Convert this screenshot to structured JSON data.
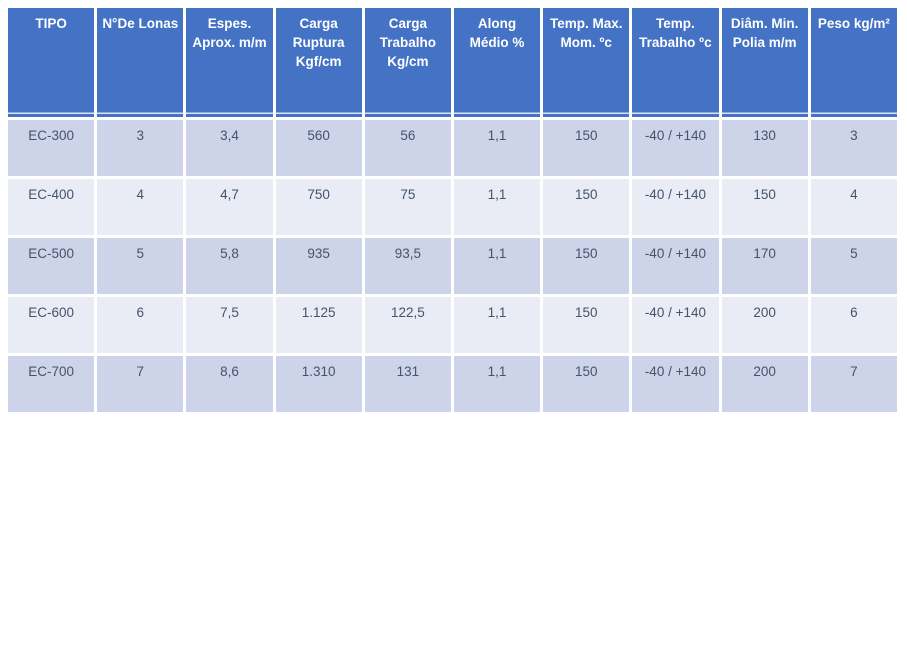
{
  "colors": {
    "header_bg": "#4472C4",
    "header_text": "#FFFFFF",
    "row_band_dark": "#CDD3E8",
    "row_band_light": "#E9EBF5",
    "body_text": "#44546A",
    "page_bg": "#FFFFFF"
  },
  "header_display": [
    "TIPO",
    "N°De Lonas",
    "Espes.\nAprox. m/m",
    "Carga\nRuptura\nKgf/cm",
    "Carga\nTrabalho\nKg/cm",
    "Along\nMédio %",
    "Temp. Max.\nMom. ºc",
    "Temp.\nTrabalho ºc",
    "Diâm. Min.\nPolia m/m",
    "Peso kg/m²"
  ],
  "chart_data": {
    "type": "table",
    "title": "",
    "columns": [
      "TIPO",
      "N°De Lonas",
      "Espes. Aprox. m/m",
      "Carga Ruptura Kgf/cm",
      "Carga Trabalho Kg/cm",
      "Along Médio %",
      "Temp. Max. Mom. ºc",
      "Temp. Trabalho ºc",
      "Diâm. Min. Polia m/m",
      "Peso kg/m²"
    ],
    "rows": [
      [
        "EC-300",
        "3",
        "3,4",
        "560",
        "56",
        "1,1",
        "150",
        "-40 / +140",
        "130",
        "3"
      ],
      [
        "EC-400",
        "4",
        "4,7",
        "750",
        "75",
        "1,1",
        "150",
        "-40 / +140",
        "150",
        "4"
      ],
      [
        "EC-500",
        "5",
        "5,8",
        "935",
        "93,5",
        "1,1",
        "150",
        "-40 / +140",
        "170",
        "5"
      ],
      [
        "EC-600",
        "6",
        "7,5",
        "1.125",
        "122,5",
        "1,1",
        "150",
        "-40 / +140",
        "200",
        "6"
      ],
      [
        "EC-700",
        "7",
        "8,6",
        "1.310",
        "131",
        "1,1",
        "150",
        "-40 / +140",
        "200",
        "7"
      ]
    ]
  }
}
